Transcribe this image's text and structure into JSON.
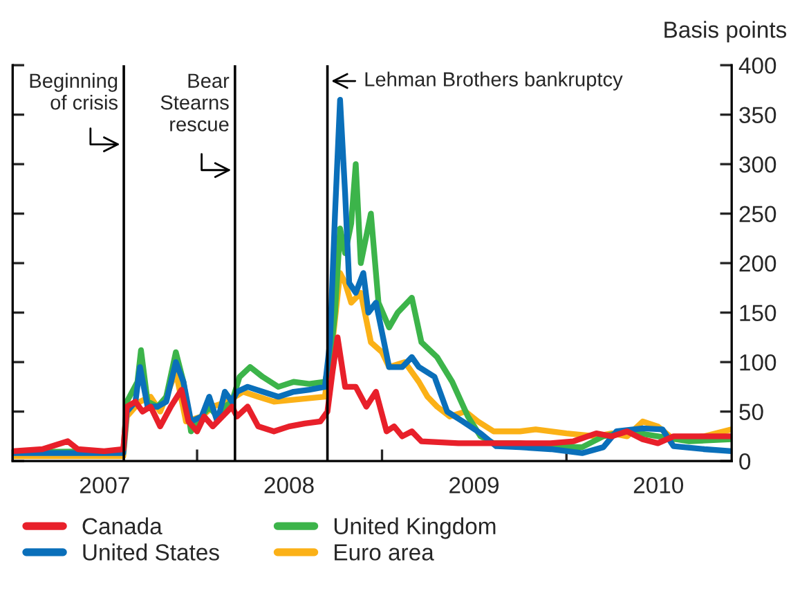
{
  "chart_data": {
    "type": "line",
    "ylabel": "Basis points",
    "xlim": [
      "2007-01-01",
      "2010-11-24"
    ],
    "xticks": [
      {
        "value": "2007-01-01",
        "label": null
      },
      {
        "value": "2007-07-02",
        "label": "2007"
      },
      {
        "value": "2008-01-01",
        "label": null
      },
      {
        "value": "2008-07-01",
        "label": "2008"
      },
      {
        "value": "2009-01-01",
        "label": null
      },
      {
        "value": "2009-07-02",
        "label": "2009"
      },
      {
        "value": "2010-01-01",
        "label": null
      },
      {
        "value": "2010-07-02",
        "label": "2010"
      }
    ],
    "ylim": [
      0,
      400
    ],
    "yticks": [
      0,
      50,
      100,
      150,
      200,
      250,
      300,
      350,
      400
    ],
    "grid": false,
    "legend": "bottom",
    "marker": "none",
    "line_style": "solid",
    "ref_lines": [
      {
        "axis": "x",
        "value": "2007-08-09",
        "label": "Beginning\nof crisis",
        "color": "#000000"
      },
      {
        "axis": "x",
        "value": "2008-03-16",
        "label": "Bear\nStearns\nrescue",
        "color": "#000000"
      },
      {
        "axis": "x",
        "value": "2008-09-15",
        "label": "Lehman Brothers bankruptcy",
        "color": "#000000"
      }
    ],
    "series": [
      {
        "name": "Canada",
        "color": "#e8202a",
        "x": [
          "2007-01-01",
          "2007-03-01",
          "2007-04-20",
          "2007-05-10",
          "2007-07-01",
          "2007-08-08",
          "2007-08-15",
          "2007-09-01",
          "2007-09-15",
          "2007-10-01",
          "2007-10-20",
          "2007-11-10",
          "2007-12-01",
          "2007-12-15",
          "2008-01-01",
          "2008-01-15",
          "2008-02-01",
          "2008-02-20",
          "2008-03-10",
          "2008-03-20",
          "2008-04-10",
          "2008-05-01",
          "2008-06-01",
          "2008-07-01",
          "2008-08-01",
          "2008-09-01",
          "2008-09-15",
          "2008-09-25",
          "2008-10-05",
          "2008-10-20",
          "2008-11-10",
          "2008-12-01",
          "2008-12-20",
          "2009-01-10",
          "2009-01-25",
          "2009-02-10",
          "2009-03-01",
          "2009-03-20",
          "2009-06-01",
          "2009-09-01",
          "2009-12-01",
          "2010-01-15",
          "2010-03-01",
          "2010-04-01",
          "2010-05-01",
          "2010-06-01",
          "2010-07-01",
          "2010-08-01",
          "2010-09-01",
          "2010-11-24"
        ],
        "values": [
          10,
          12,
          20,
          12,
          10,
          12,
          55,
          60,
          50,
          55,
          35,
          55,
          72,
          40,
          30,
          45,
          35,
          45,
          55,
          45,
          55,
          35,
          30,
          35,
          38,
          40,
          50,
          90,
          125,
          75,
          75,
          55,
          70,
          30,
          35,
          25,
          30,
          20,
          18,
          18,
          18,
          20,
          28,
          25,
          30,
          22,
          18,
          25,
          25,
          25
        ]
      },
      {
        "name": "United States",
        "color": "#0a6fba",
        "x": [
          "2007-01-01",
          "2007-08-08",
          "2007-08-15",
          "2007-09-01",
          "2007-09-10",
          "2007-09-25",
          "2007-10-15",
          "2007-11-01",
          "2007-11-20",
          "2007-12-05",
          "2007-12-20",
          "2008-01-10",
          "2008-01-25",
          "2008-02-10",
          "2008-02-25",
          "2008-03-10",
          "2008-03-20",
          "2008-04-10",
          "2008-05-10",
          "2008-06-10",
          "2008-07-10",
          "2008-08-10",
          "2008-09-10",
          "2008-09-20",
          "2008-09-30",
          "2008-10-10",
          "2008-10-20",
          "2008-10-28",
          "2008-11-10",
          "2008-11-25",
          "2008-12-05",
          "2008-12-20",
          "2009-01-01",
          "2009-01-15",
          "2009-02-10",
          "2009-03-01",
          "2009-03-15",
          "2009-04-15",
          "2009-05-10",
          "2009-06-10",
          "2009-07-15",
          "2009-08-15",
          "2009-10-01",
          "2009-12-01",
          "2010-02-01",
          "2010-03-15",
          "2010-04-10",
          "2010-06-01",
          "2010-07-10",
          "2010-08-01",
          "2010-10-01",
          "2010-11-24"
        ],
        "values": [
          8,
          8,
          50,
          60,
          95,
          55,
          55,
          60,
          100,
          80,
          40,
          45,
          65,
          40,
          70,
          60,
          70,
          75,
          70,
          65,
          70,
          72,
          75,
          120,
          250,
          365,
          270,
          180,
          170,
          190,
          150,
          160,
          130,
          95,
          95,
          105,
          95,
          85,
          50,
          40,
          28,
          15,
          14,
          12,
          8,
          14,
          30,
          33,
          32,
          15,
          12,
          10
        ]
      },
      {
        "name": "United Kingdom",
        "color": "#3cb44a",
        "x": [
          "2007-01-01",
          "2007-08-08",
          "2007-08-15",
          "2007-09-05",
          "2007-09-12",
          "2007-09-25",
          "2007-10-15",
          "2007-11-01",
          "2007-11-20",
          "2007-12-05",
          "2007-12-20",
          "2008-01-10",
          "2008-01-25",
          "2008-02-10",
          "2008-02-25",
          "2008-03-10",
          "2008-03-25",
          "2008-04-15",
          "2008-05-10",
          "2008-06-10",
          "2008-07-10",
          "2008-08-10",
          "2008-09-10",
          "2008-09-20",
          "2008-09-30",
          "2008-10-10",
          "2008-10-20",
          "2008-11-01",
          "2008-11-10",
          "2008-11-20",
          "2008-12-10",
          "2008-12-25",
          "2009-01-15",
          "2009-02-01",
          "2009-03-01",
          "2009-03-20",
          "2009-04-20",
          "2009-05-20",
          "2009-06-20",
          "2009-07-15",
          "2009-08-10",
          "2009-10-01",
          "2009-12-01",
          "2010-02-01",
          "2010-03-15",
          "2010-05-01",
          "2010-07-01",
          "2010-09-01",
          "2010-11-24"
        ],
        "values": [
          9,
          10,
          60,
          80,
          112,
          60,
          55,
          65,
          110,
          80,
          30,
          45,
          55,
          45,
          55,
          60,
          85,
          95,
          85,
          75,
          80,
          78,
          80,
          100,
          150,
          235,
          210,
          240,
          300,
          200,
          250,
          160,
          135,
          150,
          165,
          120,
          105,
          80,
          45,
          25,
          18,
          18,
          15,
          14,
          25,
          30,
          25,
          20,
          22
        ]
      },
      {
        "name": "Euro area",
        "color": "#fbb117",
        "x": [
          "2007-01-01",
          "2007-08-08",
          "2007-08-15",
          "2007-09-10",
          "2007-10-01",
          "2007-10-20",
          "2007-11-20",
          "2007-12-10",
          "2008-01-10",
          "2008-02-01",
          "2008-03-01",
          "2008-04-01",
          "2008-05-01",
          "2008-06-01",
          "2008-09-10",
          "2008-09-25",
          "2008-10-10",
          "2008-10-20",
          "2008-11-01",
          "2008-11-20",
          "2008-12-10",
          "2009-01-01",
          "2009-01-15",
          "2009-02-15",
          "2009-03-15",
          "2009-04-01",
          "2009-04-20",
          "2009-05-15",
          "2009-06-15",
          "2009-07-10",
          "2009-08-10",
          "2009-10-01",
          "2009-11-01",
          "2010-01-01",
          "2010-03-01",
          "2010-04-01",
          "2010-05-01",
          "2010-06-01",
          "2010-07-01",
          "2010-08-01",
          "2010-10-01",
          "2010-11-24"
        ],
        "values": [
          5,
          5,
          45,
          60,
          65,
          50,
          90,
          40,
          45,
          55,
          60,
          70,
          65,
          60,
          65,
          120,
          190,
          180,
          160,
          170,
          120,
          110,
          95,
          100,
          80,
          65,
          55,
          45,
          50,
          40,
          30,
          30,
          32,
          28,
          25,
          28,
          25,
          40,
          35,
          22,
          25,
          32
        ]
      }
    ]
  }
}
